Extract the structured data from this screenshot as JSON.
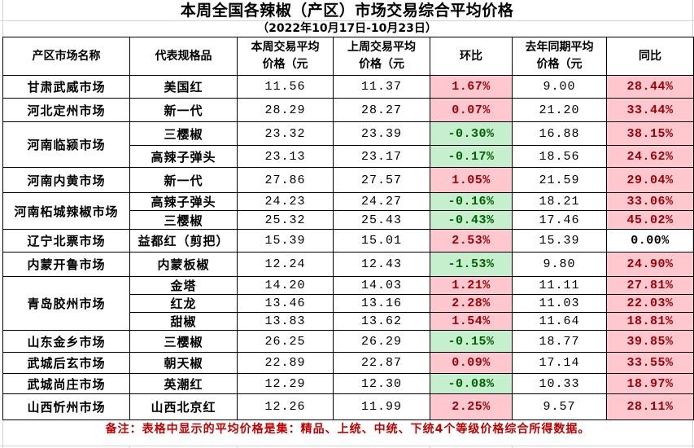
{
  "title": "本周全国各辣椒（产区）市场交易综合平均价格",
  "subtitle": "（2022年10月17日-10月23日）",
  "colors": {
    "up_bg": "#FFC7CE",
    "up_text": "#9C0006",
    "down_bg": "#C6EFCE",
    "down_text": "#006100",
    "note_text": "#C00000",
    "border": "#000000",
    "gridline": "#D4D4D4"
  },
  "table": {
    "headers": [
      {
        "line1": "产区市场名称",
        "line2": ""
      },
      {
        "line1": "代表规格品",
        "line2": ""
      },
      {
        "line1": "本周交易平均",
        "line2": "价格（元"
      },
      {
        "line1": "上周交易平均",
        "line2": "价格（元"
      },
      {
        "line1": "环比",
        "line2": ""
      },
      {
        "line1": "去年同期平均",
        "line2": "价格（元"
      },
      {
        "line1": "同比",
        "line2": ""
      }
    ],
    "markets": [
      {
        "name": "甘肃武威市场",
        "items": [
          {
            "spec": "美国红",
            "this_week": "11.56",
            "last_week": "11.37",
            "mom": "1.67%",
            "last_year": "9.00",
            "yoy": "28.44%"
          }
        ]
      },
      {
        "name": "河北定州市场",
        "items": [
          {
            "spec": "新一代",
            "this_week": "28.29",
            "last_week": "28.27",
            "mom": "0.07%",
            "last_year": "21.20",
            "yoy": "33.44%"
          }
        ]
      },
      {
        "name": "河南临颍市场",
        "items": [
          {
            "spec": "三樱椒",
            "this_week": "23.32",
            "last_week": "23.39",
            "mom": "-0.30%",
            "last_year": "16.88",
            "yoy": "38.15%"
          },
          {
            "spec": "高辣子弹头",
            "this_week": "23.13",
            "last_week": "23.17",
            "mom": "-0.17%",
            "last_year": "18.56",
            "yoy": "24.62%"
          }
        ]
      },
      {
        "name": "河南内黄市场",
        "items": [
          {
            "spec": "新一代",
            "this_week": "27.86",
            "last_week": "27.57",
            "mom": "1.05%",
            "last_year": "21.59",
            "yoy": "29.04%"
          }
        ]
      },
      {
        "name": "河南柘城辣椒市场",
        "items": [
          {
            "spec": "高辣子弹头",
            "this_week": "24.23",
            "last_week": "24.27",
            "mom": "-0.16%",
            "last_year": "18.21",
            "yoy": "33.06%"
          },
          {
            "spec": "三樱椒",
            "this_week": "25.32",
            "last_week": "25.43",
            "mom": "-0.43%",
            "last_year": "17.46",
            "yoy": "45.02%"
          }
        ]
      },
      {
        "name": "辽宁北票市场",
        "items": [
          {
            "spec": "益都红（剪把）",
            "this_week": "15.39",
            "last_week": "15.01",
            "mom": "2.53%",
            "last_year": "15.39",
            "yoy": "0.00%"
          }
        ]
      },
      {
        "name": "内蒙开鲁市场",
        "items": [
          {
            "spec": "内蒙板椒",
            "this_week": "12.24",
            "last_week": "12.43",
            "mom": "-1.53%",
            "last_year": "9.80",
            "yoy": "24.90%"
          }
        ]
      },
      {
        "name": "青岛胶州市场",
        "items": [
          {
            "spec": "金塔",
            "this_week": "14.20",
            "last_week": "14.03",
            "mom": "1.21%",
            "last_year": "11.11",
            "yoy": "27.81%"
          },
          {
            "spec": "红龙",
            "this_week": "13.46",
            "last_week": "13.16",
            "mom": "2.28%",
            "last_year": "11.03",
            "yoy": "22.03%"
          },
          {
            "spec": "甜椒",
            "this_week": "13.83",
            "last_week": "13.62",
            "mom": "1.54%",
            "last_year": "11.64",
            "yoy": "18.81%"
          }
        ]
      },
      {
        "name": "山东金乡市场",
        "items": [
          {
            "spec": "三樱椒",
            "this_week": "26.25",
            "last_week": "26.29",
            "mom": "-0.15%",
            "last_year": "18.77",
            "yoy": "39.85%"
          }
        ]
      },
      {
        "name": "武城后玄市场",
        "items": [
          {
            "spec": "朝天椒",
            "this_week": "22.89",
            "last_week": "22.87",
            "mom": "0.09%",
            "last_year": "17.14",
            "yoy": "33.55%"
          }
        ]
      },
      {
        "name": "武城尚庄市场",
        "items": [
          {
            "spec": "英潮红",
            "this_week": "12.29",
            "last_week": "12.30",
            "mom": "-0.08%",
            "last_year": "10.33",
            "yoy": "18.97%"
          }
        ]
      },
      {
        "name": "山西忻州市场",
        "items": [
          {
            "spec": "山西北京红",
            "this_week": "12.26",
            "last_week": "11.99",
            "mom": "2.25%",
            "last_year": "9.57",
            "yoy": "28.11%"
          }
        ]
      }
    ]
  },
  "note": "备注：表格中显示的平均价格是集：精品、上统、中统、下统4个等级价格综合所得数据。"
}
